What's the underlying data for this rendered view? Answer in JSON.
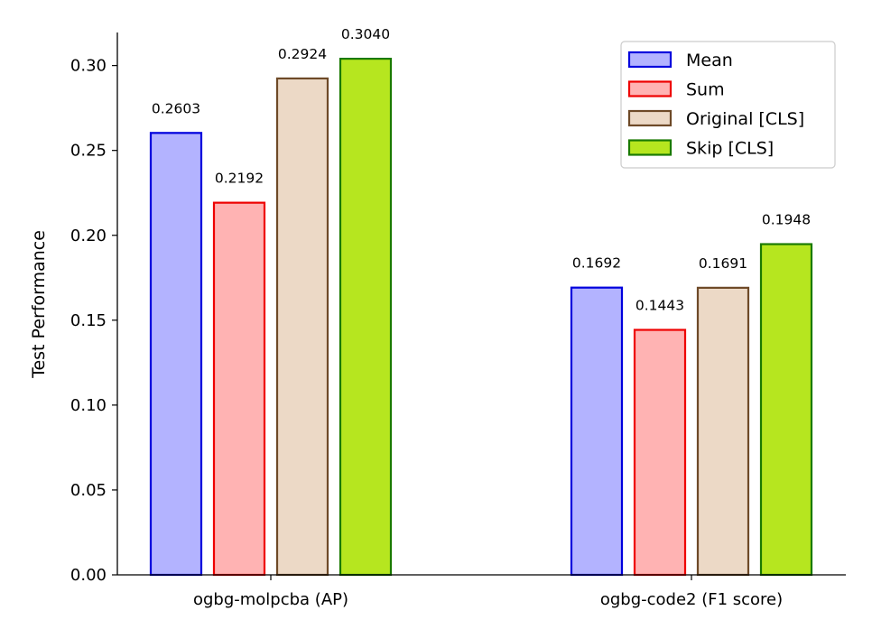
{
  "chart_data": {
    "type": "bar",
    "ylabel": "Test Performance",
    "xlabel": "",
    "ylim": [
      0,
      0.32
    ],
    "yticks": [
      "0.00",
      "0.05",
      "0.10",
      "0.15",
      "0.20",
      "0.25",
      "0.30"
    ],
    "categories": [
      "ogbg-molpcba (AP)",
      "ogbg-code2 (F1 score)"
    ],
    "legend_position": "top-right",
    "grid": false,
    "series": [
      {
        "name": "Mean",
        "fill": "#b3b3ff",
        "stroke": "#0000dd",
        "values": [
          0.2603,
          0.1692
        ],
        "labels": [
          "0.2603",
          "0.1692"
        ]
      },
      {
        "name": "Sum",
        "fill": "#ffb3b3",
        "stroke": "#ee0000",
        "values": [
          0.2192,
          0.1443
        ],
        "labels": [
          "0.2192",
          "0.1443"
        ]
      },
      {
        "name": "Original [CLS]",
        "fill": "#ecd9c6",
        "stroke": "#6e4a28",
        "values": [
          0.2924,
          0.1691
        ],
        "labels": [
          "0.2924",
          "0.1691"
        ]
      },
      {
        "name": "Skip [CLS]",
        "fill": "#b6e61f",
        "stroke": "#1a7a00",
        "values": [
          0.304,
          0.1948
        ],
        "labels": [
          "0.3040",
          "0.1948"
        ]
      }
    ]
  }
}
